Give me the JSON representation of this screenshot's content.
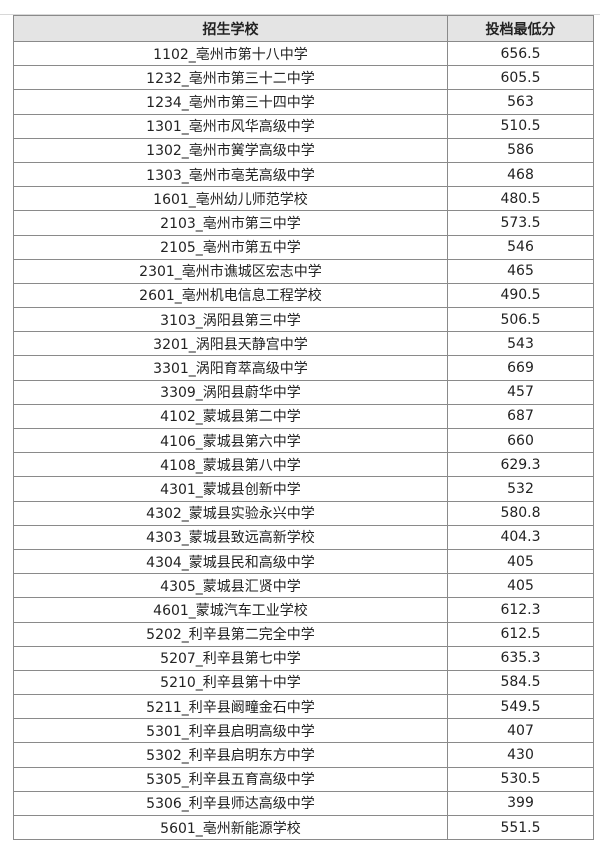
{
  "table": {
    "headers": [
      "招生学校",
      "投档最低分"
    ],
    "rows": [
      [
        "1102_亳州市第十八中学",
        "656.5"
      ],
      [
        "1232_亳州市第三十二中学",
        "605.5"
      ],
      [
        "1234_亳州市第三十四中学",
        "563"
      ],
      [
        "1301_亳州市风华高级中学",
        "510.5"
      ],
      [
        "1302_亳州市黉学高级中学",
        "586"
      ],
      [
        "1303_亳州市亳芜高级中学",
        "468"
      ],
      [
        "1601_亳州幼儿师范学校",
        "480.5"
      ],
      [
        "2103_亳州市第三中学",
        "573.5"
      ],
      [
        "2105_亳州市第五中学",
        "546"
      ],
      [
        "2301_亳州市谯城区宏志中学",
        "465"
      ],
      [
        "2601_亳州机电信息工程学校",
        "490.5"
      ],
      [
        "3103_涡阳县第三中学",
        "506.5"
      ],
      [
        "3201_涡阳县天静宫中学",
        "543"
      ],
      [
        "3301_涡阳育萃高级中学",
        "669"
      ],
      [
        "3309_涡阳县蔚华中学",
        "457"
      ],
      [
        "4102_蒙城县第二中学",
        "687"
      ],
      [
        "4106_蒙城县第六中学",
        "660"
      ],
      [
        "4108_蒙城县第八中学",
        "629.3"
      ],
      [
        "4301_蒙城县创新中学",
        "532"
      ],
      [
        "4302_蒙城县实验永兴中学",
        "580.8"
      ],
      [
        "4303_蒙城县致远高新学校",
        "404.3"
      ],
      [
        "4304_蒙城县民和高级中学",
        "405"
      ],
      [
        "4305_蒙城县汇贤中学",
        "405"
      ],
      [
        "4601_蒙城汽车工业学校",
        "612.3"
      ],
      [
        "5202_利辛县第二完全中学",
        "612.5"
      ],
      [
        "5207_利辛县第七中学",
        "635.3"
      ],
      [
        "5210_利辛县第十中学",
        "584.5"
      ],
      [
        "5211_利辛县阚疃金石中学",
        "549.5"
      ],
      [
        "5301_利辛县启明高级中学",
        "407"
      ],
      [
        "5302_利辛县启明东方中学",
        "430"
      ],
      [
        "5305_利辛县五育高级中学",
        "530.5"
      ],
      [
        "5306_利辛县师达高级中学",
        "399"
      ],
      [
        "5601_亳州新能源学校",
        "551.5"
      ]
    ]
  }
}
